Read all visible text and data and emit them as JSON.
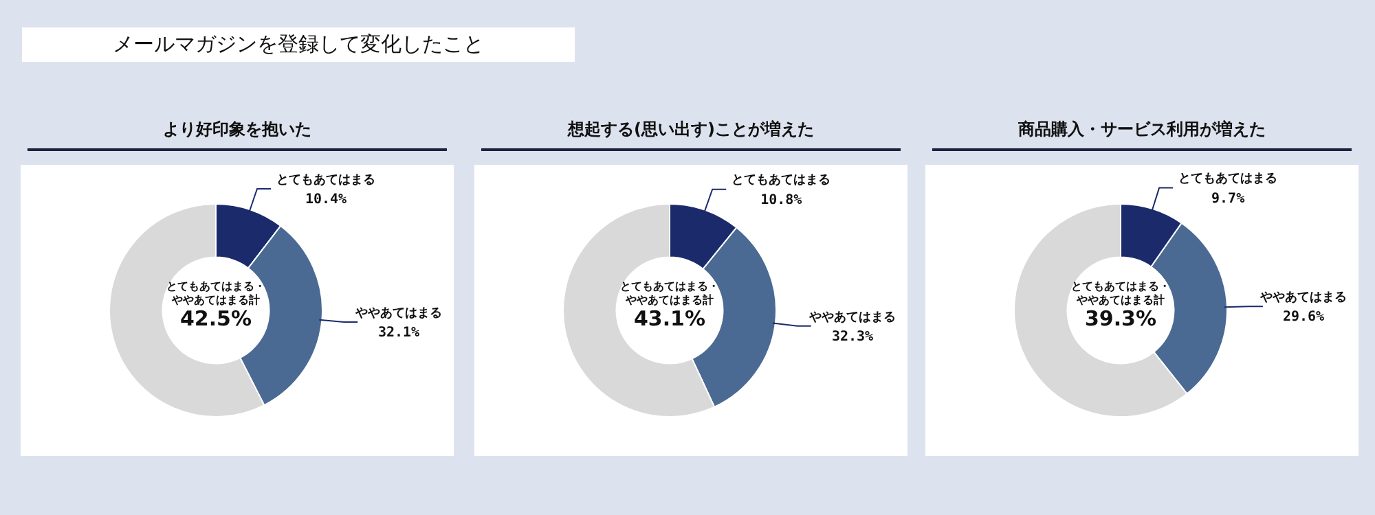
{
  "chart_data": [
    {
      "type": "other",
      "title": "メールマガジンを登録して変化したこと"
    },
    {
      "type": "donut",
      "title": "より好印象を抱いた",
      "categories": [
        "とてもあてはまる",
        "ややあてはまる",
        null
      ],
      "values": [
        10.4,
        32.1,
        57.5
      ],
      "colors": [
        "#1b2a6b",
        "#4a6a93",
        "#d9d9d9"
      ],
      "value_labels": [
        "10.4%",
        "32.1%",
        null
      ],
      "annotations": [
        "とてもあてはまる・ややあてはまる計",
        "42.5%"
      ]
    },
    {
      "type": "donut",
      "title": "想起する(思い出す)ことが増えた",
      "categories": [
        "とてもあてはまる",
        "ややあてはまる",
        null
      ],
      "values": [
        10.8,
        32.3,
        56.9
      ],
      "colors": [
        "#1b2a6b",
        "#4a6a93",
        "#d9d9d9"
      ],
      "value_labels": [
        "10.8%",
        "32.3%",
        null
      ],
      "annotations": [
        "とてもあてはまる・ややあてはまる計",
        "43.1%"
      ]
    },
    {
      "type": "donut",
      "title": "商品購入・サービス利用が増えた",
      "categories": [
        "とてもあてはまる",
        "ややあてはまる",
        null
      ],
      "values": [
        9.7,
        29.6,
        60.7
      ],
      "colors": [
        "#1b2a6b",
        "#4a6a93",
        "#d9d9d9"
      ],
      "value_labels": [
        "9.7%",
        "29.6%",
        null
      ],
      "annotations": [
        "とてもあてはまる・ややあてはまる計",
        "39.3%"
      ]
    }
  ]
}
